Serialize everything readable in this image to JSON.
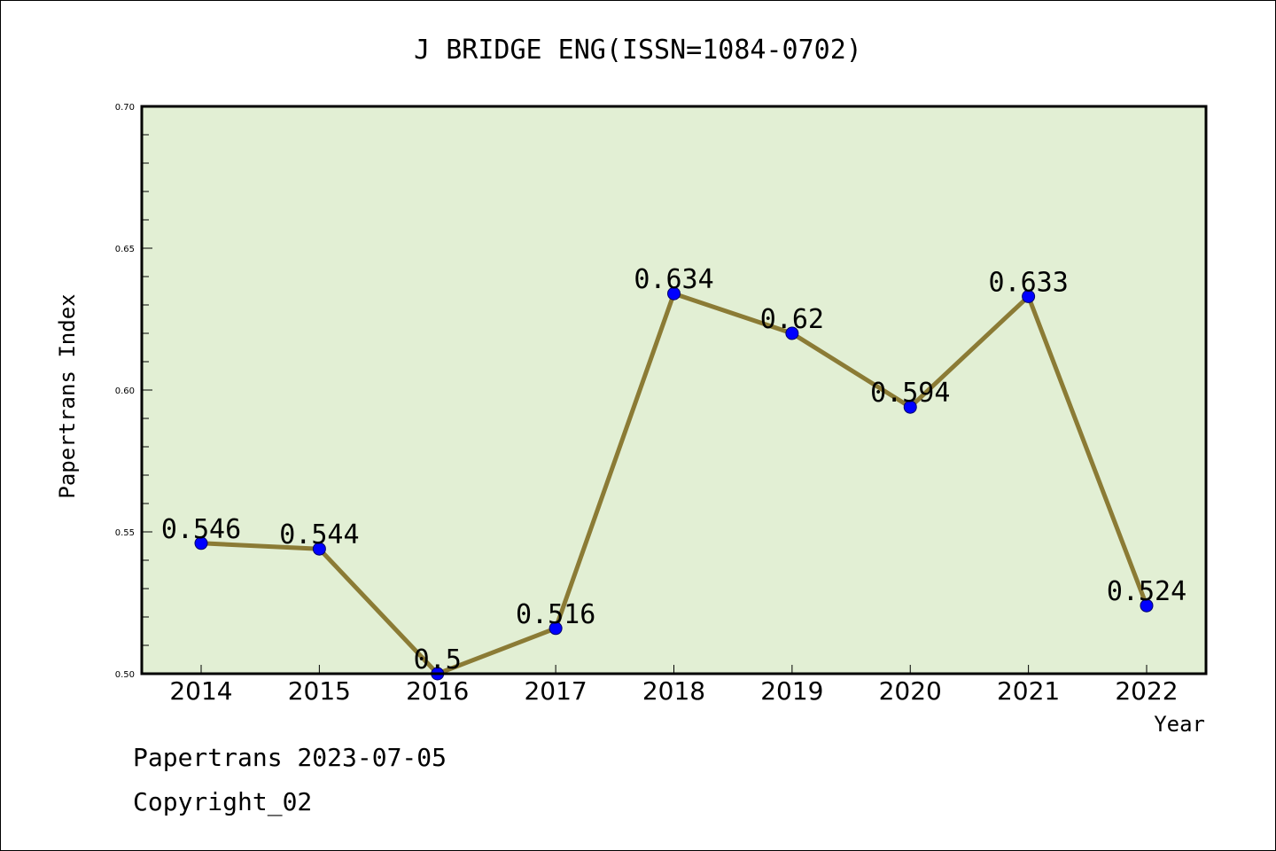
{
  "chart_data": {
    "type": "line",
    "title": "J BRIDGE ENG(ISSN=1084-0702)",
    "xlabel": "Year",
    "ylabel": "Papertrans Index",
    "categories": [
      "2014",
      "2015",
      "2016",
      "2017",
      "2018",
      "2019",
      "2020",
      "2021",
      "2022"
    ],
    "series": [
      {
        "values": [
          0.546,
          0.544,
          0.5,
          0.516,
          0.634,
          0.62,
          0.594,
          0.633,
          0.524
        ]
      }
    ],
    "data_labels": [
      "0.546",
      "0.544",
      "0.5",
      "0.516",
      "0.634",
      "0.62",
      "0.594",
      "0.633",
      "0.524"
    ],
    "ylim": [
      0.5,
      0.7
    ],
    "yticks": [
      "0.50",
      "0.55",
      "0.60",
      "0.65",
      "0.70"
    ],
    "grid": false,
    "colors": {
      "plot_background": "#e2efd4",
      "line": "#8b7b35",
      "marker": "#0000ff"
    }
  },
  "footer": {
    "line1": "Papertrans 2023-07-05",
    "line2": "Copyright_02"
  }
}
